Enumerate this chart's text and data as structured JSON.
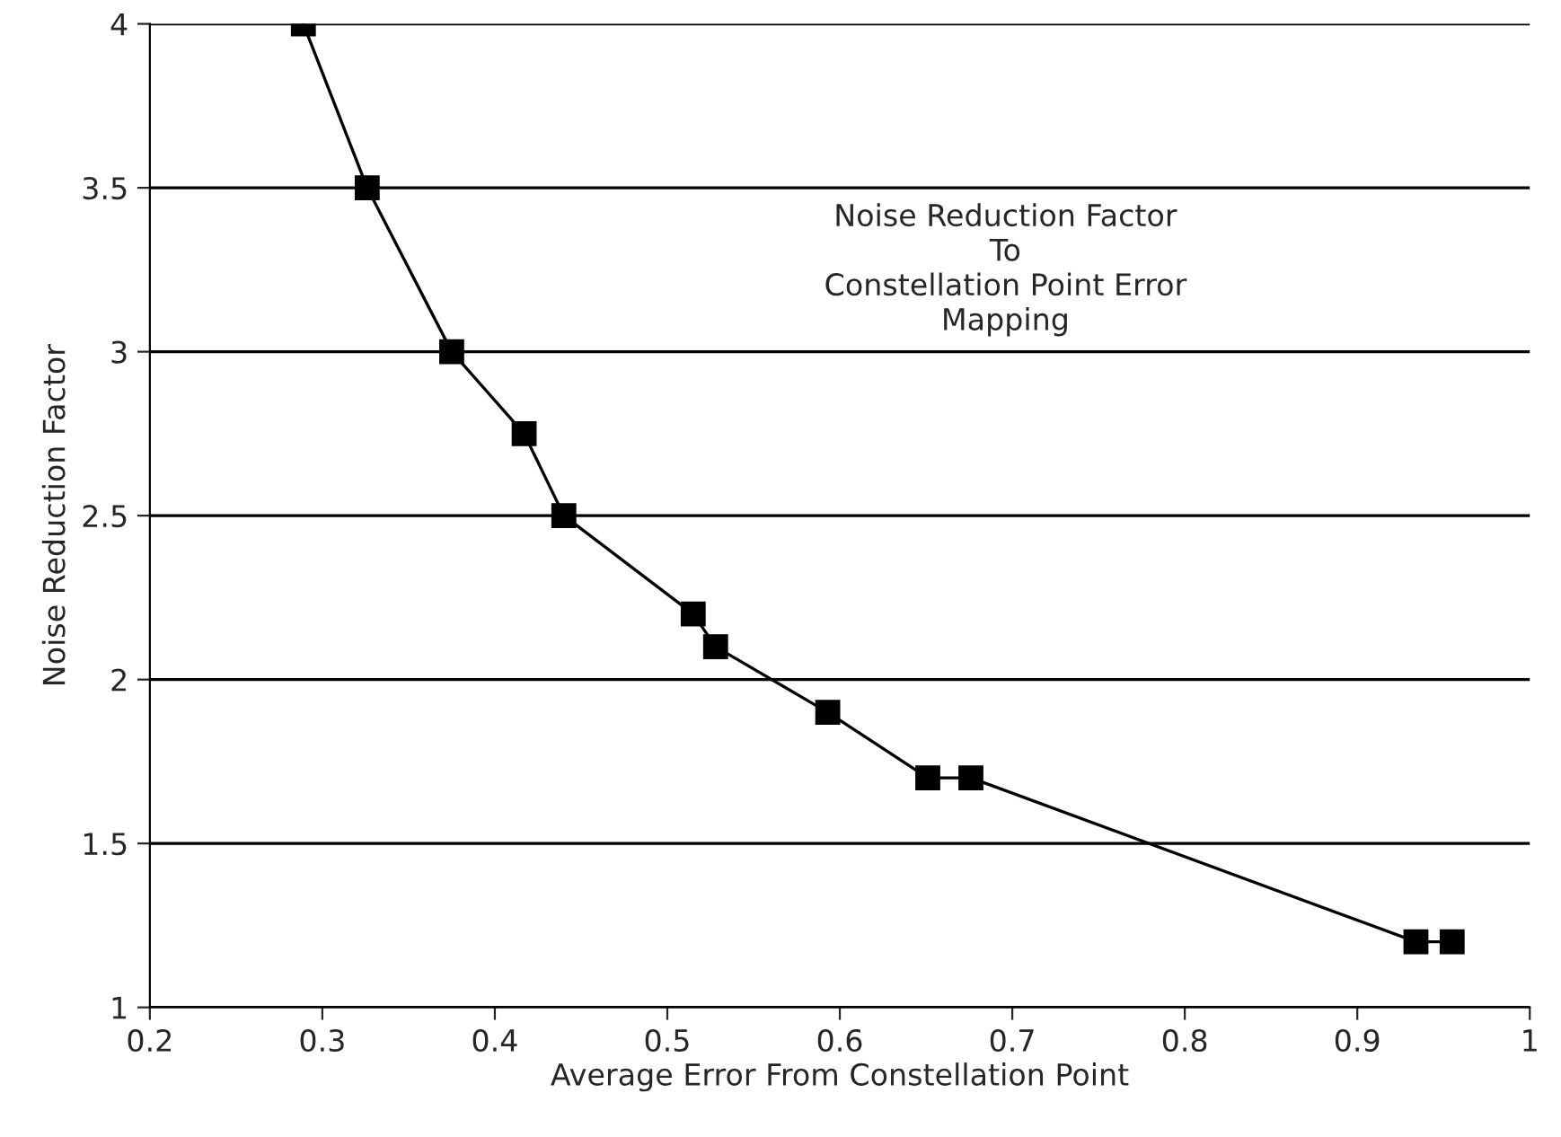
{
  "chart_data": {
    "type": "line",
    "xlabel": "Average Error From Constellation Point",
    "ylabel": "Noise Reduction Factor",
    "annotations": [
      "Noise Reduction Factor\nTo\nConstellation Point Error\nMapping"
    ],
    "series": [
      {
        "color": "#000000",
        "x": [
          0.289,
          0.326,
          0.375,
          0.417,
          0.44,
          0.515,
          0.528,
          0.593,
          0.651,
          0.676,
          0.934,
          0.955
        ],
        "values": [
          4.0,
          3.5,
          3.0,
          2.75,
          2.5,
          2.2,
          2.1,
          1.9,
          1.7,
          1.7,
          1.2,
          1.2
        ]
      }
    ],
    "xlim": [
      0.2,
      1
    ],
    "xticks": [
      0.2,
      0.3,
      0.4,
      0.5,
      0.6,
      0.7,
      0.8,
      0.9,
      1
    ],
    "ylim": [
      1,
      4
    ],
    "yticks": [
      1,
      1.5,
      2,
      2.5,
      3,
      3.5,
      4
    ],
    "grid": "y",
    "marker": "square",
    "line_style": "solid"
  }
}
